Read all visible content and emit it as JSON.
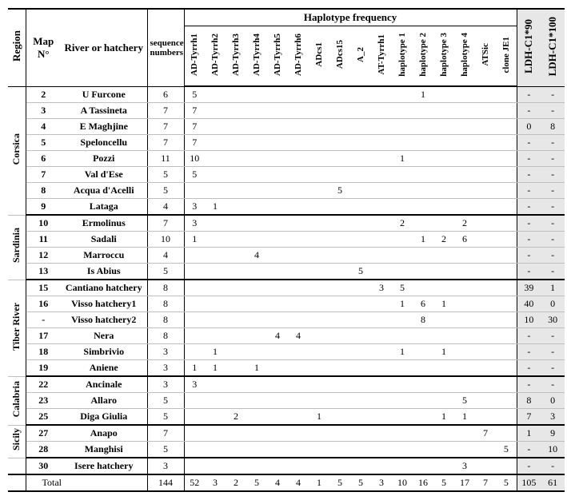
{
  "headers": {
    "region": "Region",
    "map": "Map N°",
    "river": "River or hatchery",
    "seq": "sequence numbers",
    "hapfreq": "Haplotype frequency",
    "haps": [
      "AD-Tyrrh1",
      "AD-Tyrrh2",
      "AD-Tyrrh3",
      "AD-Tyrrh4",
      "AD-Tyrrh5",
      "AD-Tyrrh6",
      "ADcs1",
      "ADcs15",
      "A_2",
      "AT-Tyrrh1",
      "haplotype 1",
      "haplotype 2",
      "haplotype 3",
      "haplotype 4",
      "ATSic",
      "clone JE1"
    ],
    "ldh": [
      "LDH-C1*90",
      "LDH-C1*100"
    ]
  },
  "regions": [
    {
      "name": "Corsica",
      "rows": [
        {
          "map": "2",
          "river": "U Furcone",
          "seq": "6",
          "h": [
            "5",
            "",
            "",
            "",
            "",
            "",
            "",
            "",
            "",
            "",
            "",
            "1",
            "",
            "",
            "",
            ""
          ],
          "l": [
            "-",
            "-"
          ]
        },
        {
          "map": "3",
          "river": "A Tassineta",
          "seq": "7",
          "h": [
            "7",
            "",
            "",
            "",
            "",
            "",
            "",
            "",
            "",
            "",
            "",
            "",
            "",
            "",
            "",
            ""
          ],
          "l": [
            "-",
            "-"
          ]
        },
        {
          "map": "4",
          "river": "E Maghjine",
          "seq": "7",
          "h": [
            "7",
            "",
            "",
            "",
            "",
            "",
            "",
            "",
            "",
            "",
            "",
            "",
            "",
            "",
            "",
            ""
          ],
          "l": [
            "0",
            "8"
          ]
        },
        {
          "map": "5",
          "river": "Speloncellu",
          "seq": "7",
          "h": [
            "7",
            "",
            "",
            "",
            "",
            "",
            "",
            "",
            "",
            "",
            "",
            "",
            "",
            "",
            "",
            ""
          ],
          "l": [
            "-",
            "-"
          ]
        },
        {
          "map": "6",
          "river": "Pozzi",
          "seq": "11",
          "h": [
            "10",
            "",
            "",
            "",
            "",
            "",
            "",
            "",
            "",
            "",
            "1",
            "",
            "",
            "",
            "",
            ""
          ],
          "l": [
            "-",
            "-"
          ]
        },
        {
          "map": "7",
          "river": "Val d'Ese",
          "seq": "5",
          "h": [
            "5",
            "",
            "",
            "",
            "",
            "",
            "",
            "",
            "",
            "",
            "",
            "",
            "",
            "",
            "",
            ""
          ],
          "l": [
            "-",
            "-"
          ]
        },
        {
          "map": "8",
          "river": "Acqua d'Acelli",
          "seq": "5",
          "h": [
            "",
            "",
            "",
            "",
            "",
            "",
            "",
            "5",
            "",
            "",
            "",
            "",
            "",
            "",
            "",
            ""
          ],
          "l": [
            "-",
            "-"
          ]
        },
        {
          "map": "9",
          "river": "Lataga",
          "seq": "4",
          "h": [
            "3",
            "1",
            "",
            "",
            "",
            "",
            "",
            "",
            "",
            "",
            "",
            "",
            "",
            "",
            "",
            ""
          ],
          "l": [
            "-",
            "-"
          ]
        }
      ]
    },
    {
      "name": "Sardinia",
      "rows": [
        {
          "map": "10",
          "river": "Ermolinus",
          "seq": "7",
          "h": [
            "3",
            "",
            "",
            "",
            "",
            "",
            "",
            "",
            "",
            "",
            "2",
            "",
            "",
            "2",
            "",
            ""
          ],
          "l": [
            "-",
            "-"
          ]
        },
        {
          "map": "11",
          "river": "Sadali",
          "seq": "10",
          "h": [
            "1",
            "",
            "",
            "",
            "",
            "",
            "",
            "",
            "",
            "",
            "",
            "1",
            "2",
            "6",
            "",
            ""
          ],
          "l": [
            "-",
            "-"
          ]
        },
        {
          "map": "12",
          "river": "Marroccu",
          "seq": "4",
          "h": [
            "",
            "",
            "",
            "4",
            "",
            "",
            "",
            "",
            "",
            "",
            "",
            "",
            "",
            "",
            "",
            ""
          ],
          "l": [
            "-",
            "-"
          ]
        },
        {
          "map": "13",
          "river": "Is Abius",
          "seq": "5",
          "h": [
            "",
            "",
            "",
            "",
            "",
            "",
            "",
            "",
            "5",
            "",
            "",
            "",
            "",
            "",
            "",
            ""
          ],
          "l": [
            "-",
            "-"
          ]
        }
      ]
    },
    {
      "name": "Tiber River",
      "rows": [
        {
          "map": "15",
          "river": "Cantiano hatchery",
          "seq": "8",
          "h": [
            "",
            "",
            "",
            "",
            "",
            "",
            "",
            "",
            "",
            "3",
            "5",
            "",
            "",
            "",
            "",
            ""
          ],
          "l": [
            "39",
            "1"
          ]
        },
        {
          "map": "16",
          "river": "Visso hatchery1",
          "seq": "8",
          "h": [
            "",
            "",
            "",
            "",
            "",
            "",
            "",
            "",
            "",
            "",
            "1",
            "6",
            "1",
            "",
            "",
            ""
          ],
          "l": [
            "40",
            "0"
          ]
        },
        {
          "map": "-",
          "river": "Visso hatchery2",
          "seq": "8",
          "h": [
            "",
            "",
            "",
            "",
            "",
            "",
            "",
            "",
            "",
            "",
            "",
            "8",
            "",
            "",
            "",
            ""
          ],
          "l": [
            "10",
            "30"
          ]
        },
        {
          "map": "17",
          "river": "Nera",
          "seq": "8",
          "h": [
            "",
            "",
            "",
            "",
            "4",
            "4",
            "",
            "",
            "",
            "",
            "",
            "",
            "",
            "",
            "",
            ""
          ],
          "l": [
            "-",
            "-"
          ]
        },
        {
          "map": "18",
          "river": "Simbrivio",
          "seq": "3",
          "h": [
            "",
            "1",
            "",
            "",
            "",
            "",
            "",
            "",
            "",
            "",
            "1",
            "",
            "1",
            "",
            "",
            ""
          ],
          "l": [
            "-",
            "-"
          ]
        },
        {
          "map": "19",
          "river": "Aniene",
          "seq": "3",
          "h": [
            "1",
            "1",
            "",
            "1",
            "",
            "",
            "",
            "",
            "",
            "",
            "",
            "",
            "",
            "",
            "",
            ""
          ],
          "l": [
            "-",
            "-"
          ]
        }
      ]
    },
    {
      "name": "Calabria",
      "rows": [
        {
          "map": "22",
          "river": "Ancinale",
          "seq": "3",
          "h": [
            "3",
            "",
            "",
            "",
            "",
            "",
            "",
            "",
            "",
            "",
            "",
            "",
            "",
            "",
            "",
            ""
          ],
          "l": [
            "-",
            "-"
          ]
        },
        {
          "map": "23",
          "river": "Allaro",
          "seq": "5",
          "h": [
            "",
            "",
            "",
            "",
            "",
            "",
            "",
            "",
            "",
            "",
            "",
            "",
            "",
            "5",
            "",
            ""
          ],
          "l": [
            "8",
            "0"
          ]
        },
        {
          "map": "25",
          "river": "Diga Giulia",
          "seq": "5",
          "h": [
            "",
            "",
            "2",
            "",
            "",
            "",
            "1",
            "",
            "",
            "",
            "",
            "",
            "1",
            "1",
            "",
            ""
          ],
          "l": [
            "7",
            "3"
          ]
        }
      ]
    },
    {
      "name": "Sicily",
      "rows": [
        {
          "map": "27",
          "river": "Anapo",
          "seq": "7",
          "h": [
            "",
            "",
            "",
            "",
            "",
            "",
            "",
            "",
            "",
            "",
            "",
            "",
            "",
            "",
            "7",
            ""
          ],
          "l": [
            "1",
            "9"
          ]
        },
        {
          "map": "28",
          "river": "Manghisi",
          "seq": "5",
          "h": [
            "",
            "",
            "",
            "",
            "",
            "",
            "",
            "",
            "",
            "",
            "",
            "",
            "",
            "",
            "",
            "5"
          ],
          "l": [
            "-",
            "10"
          ]
        }
      ]
    },
    {
      "name": "",
      "rows": [
        {
          "map": "30",
          "river": "Isere hatchery",
          "seq": "3",
          "h": [
            "",
            "",
            "",
            "",
            "",
            "",
            "",
            "",
            "",
            "",
            "",
            "",
            "",
            "3",
            "",
            ""
          ],
          "l": [
            "-",
            "-"
          ]
        }
      ]
    }
  ],
  "total": {
    "label": "Total",
    "seq": "144",
    "h": [
      "52",
      "3",
      "2",
      "5",
      "4",
      "4",
      "1",
      "5",
      "5",
      "3",
      "10",
      "16",
      "5",
      "17",
      "7",
      "5"
    ],
    "l": [
      "105",
      "61"
    ]
  }
}
